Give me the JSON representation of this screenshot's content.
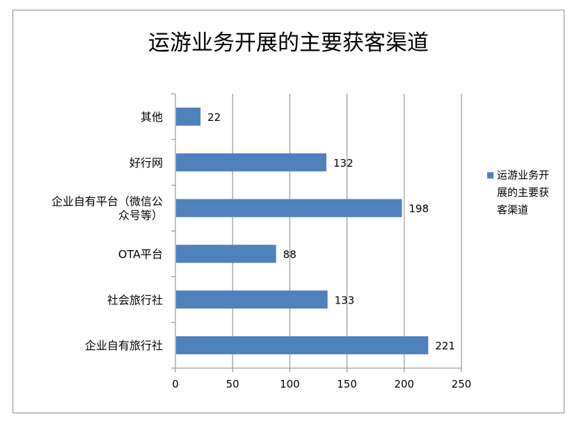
{
  "chart_data": {
    "type": "bar",
    "orientation": "horizontal",
    "title": "运游业务开展的主要获客渠道",
    "categories": [
      "其他",
      "好行网",
      "企业自有平台（微信公众号等）",
      "OTA平台",
      "社会旅行社",
      "企业自有旅行社"
    ],
    "category_label_lines": [
      [
        "其他"
      ],
      [
        "好行网"
      ],
      [
        "企业自有平台（微信公",
        "众号等）"
      ],
      [
        "OTA平台"
      ],
      [
        "社会旅行社"
      ],
      [
        "企业自有旅行社"
      ]
    ],
    "series": [
      {
        "name": "运游业务开展的主要获客渠道",
        "values": [
          22,
          132,
          198,
          88,
          133,
          221
        ],
        "color": "#4f81bd"
      }
    ],
    "xlim": [
      0,
      250
    ],
    "xticks": [
      0,
      50,
      100,
      150,
      200,
      250
    ],
    "grid": true,
    "legend_position": "right",
    "data_labels": true
  }
}
